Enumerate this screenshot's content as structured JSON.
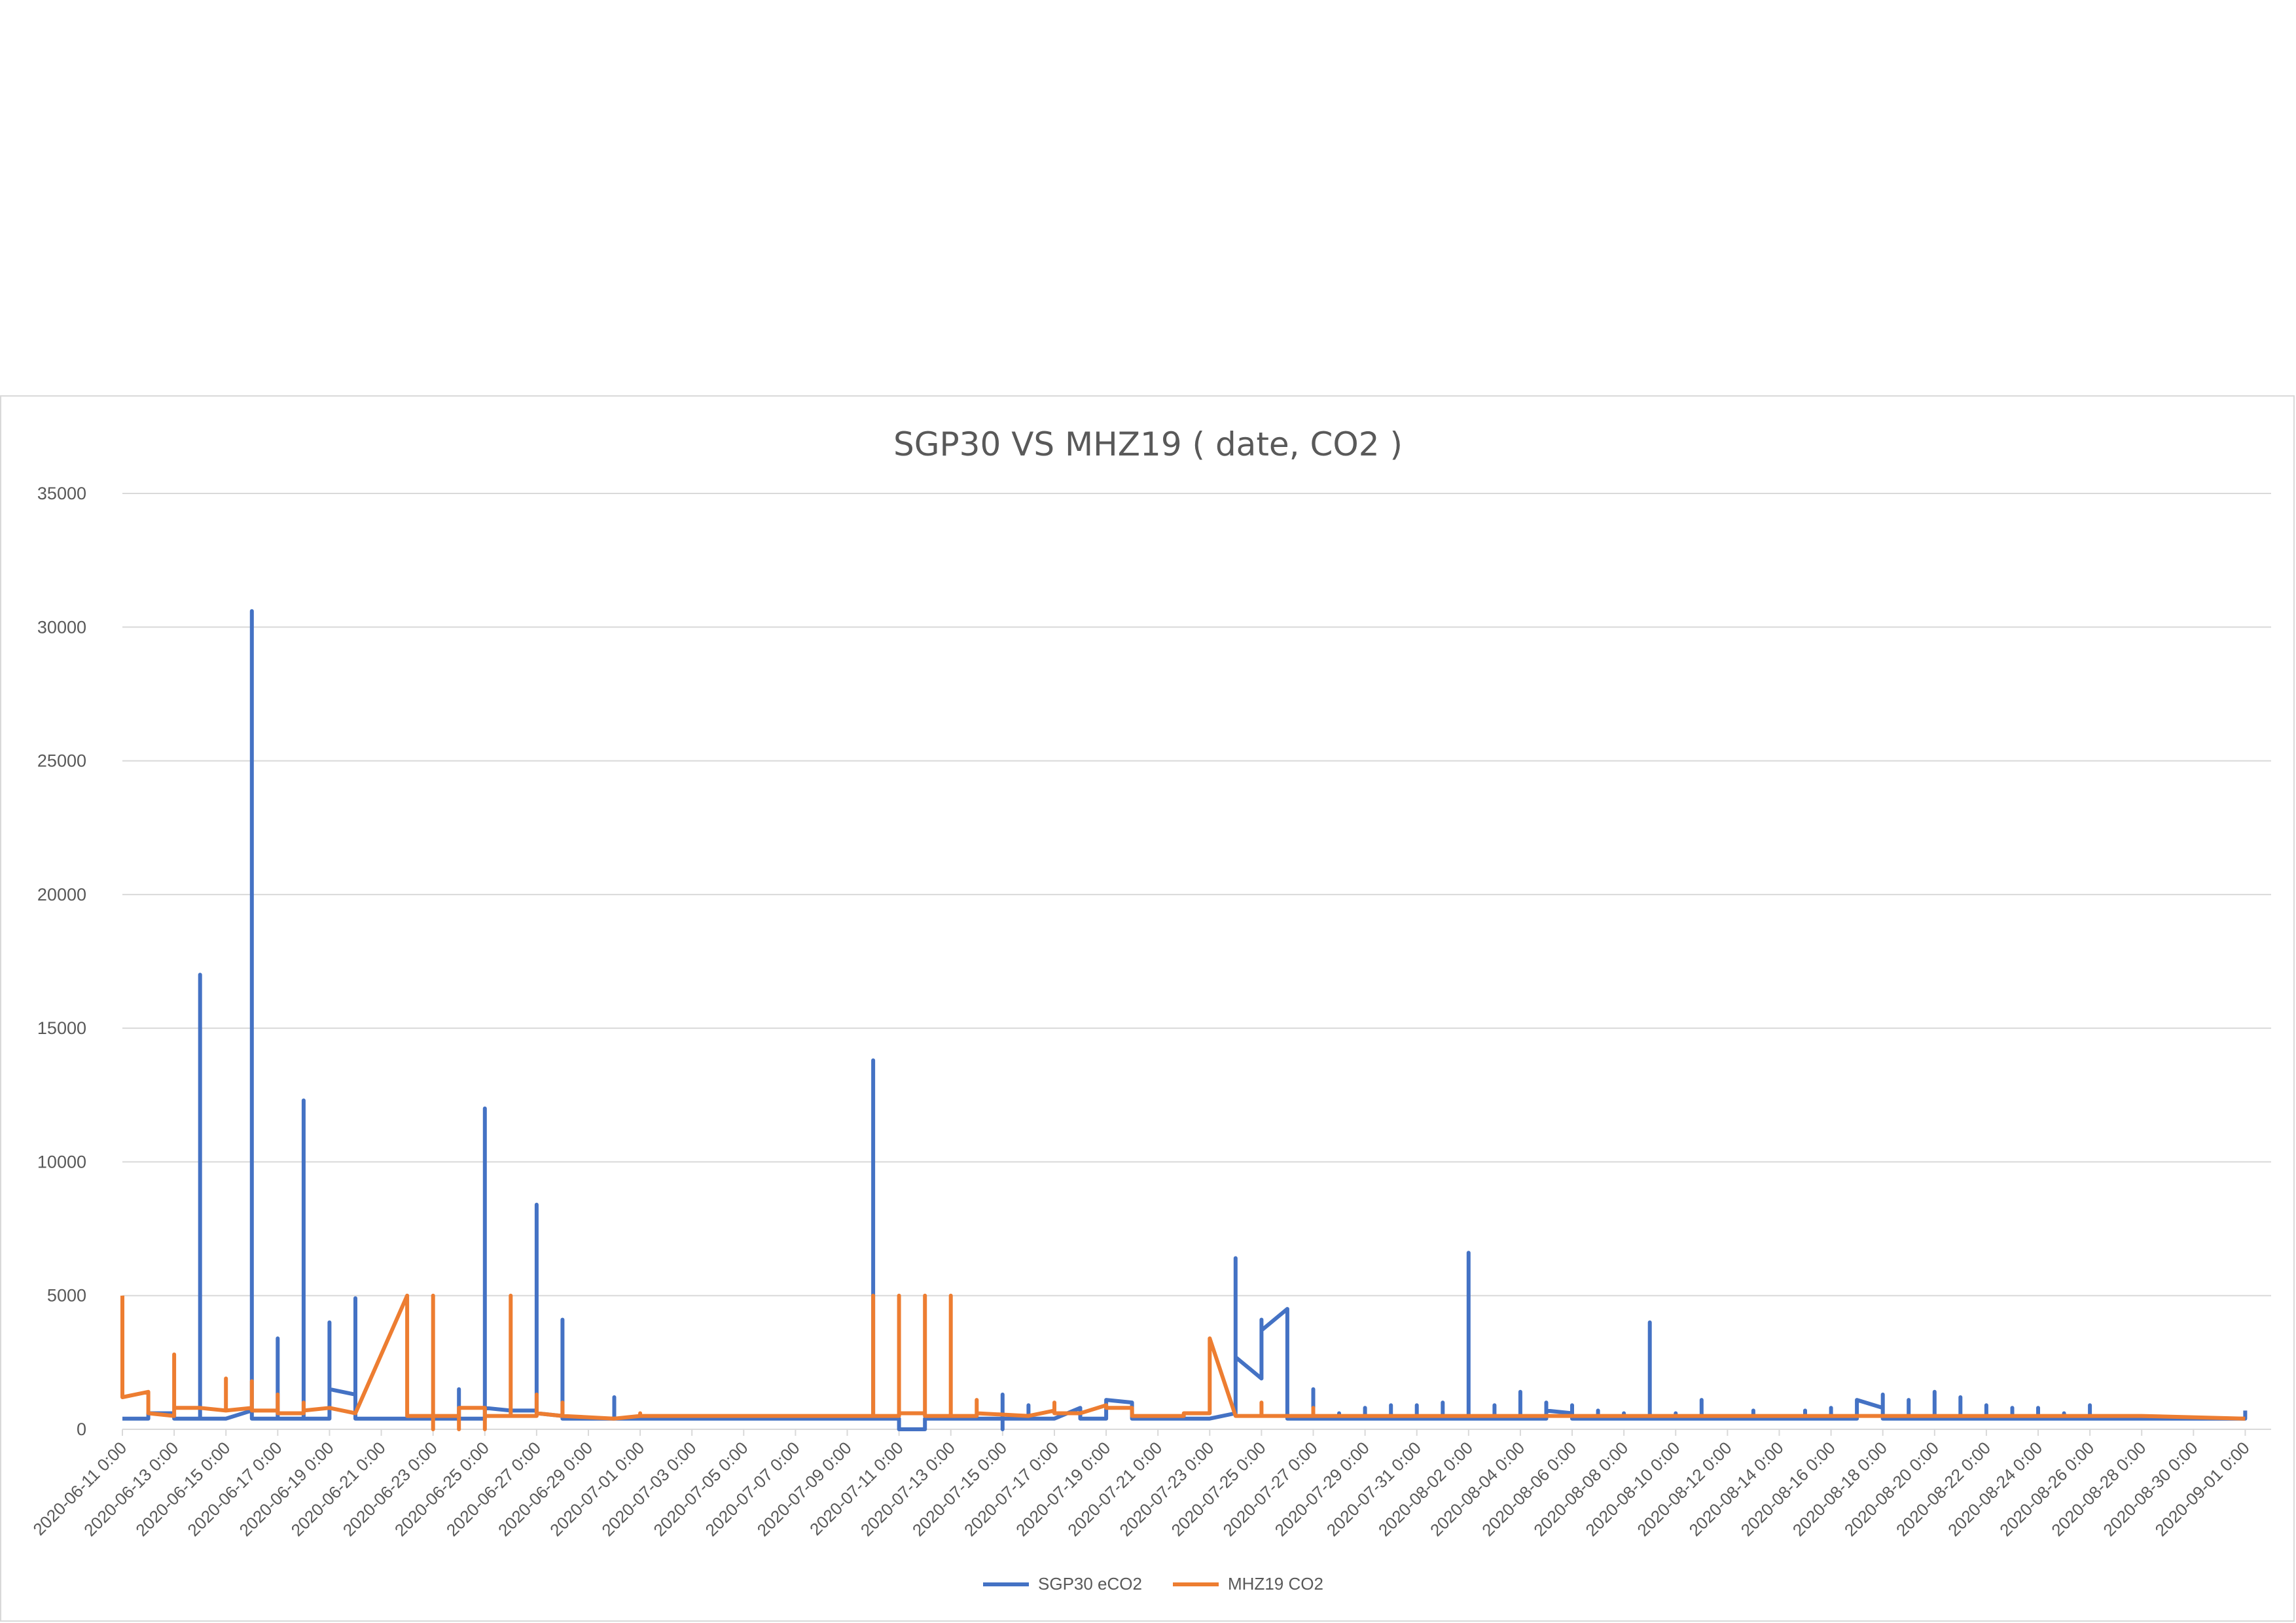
{
  "chart_data": {
    "type": "line",
    "title": "SGP30 VS MHZ19 ( date, CO2 )",
    "xlabel": "",
    "ylabel": "",
    "ylim": [
      0,
      35000
    ],
    "yticks": [
      0,
      5000,
      10000,
      15000,
      20000,
      25000,
      30000,
      35000
    ],
    "xlim": [
      "2020-06-11",
      "2020-09-02"
    ],
    "x_tick_labels": [
      "2020-06-11 0:00",
      "2020-06-13 0:00",
      "2020-06-15 0:00",
      "2020-06-17 0:00",
      "2020-06-19 0:00",
      "2020-06-21 0:00",
      "2020-06-23 0:00",
      "2020-06-25 0:00",
      "2020-06-27 0:00",
      "2020-06-29 0:00",
      "2020-07-01 0:00",
      "2020-07-03 0:00",
      "2020-07-05 0:00",
      "2020-07-07 0:00",
      "2020-07-09 0:00",
      "2020-07-11 0:00",
      "2020-07-13 0:00",
      "2020-07-15 0:00",
      "2020-07-17 0:00",
      "2020-07-19 0:00",
      "2020-07-21 0:00",
      "2020-07-23 0:00",
      "2020-07-25 0:00",
      "2020-07-27 0:00",
      "2020-07-29 0:00",
      "2020-07-31 0:00",
      "2020-08-02 0:00",
      "2020-08-04 0:00",
      "2020-08-06 0:00",
      "2020-08-08 0:00",
      "2020-08-10 0:00",
      "2020-08-12 0:00",
      "2020-08-14 0:00",
      "2020-08-16 0:00",
      "2020-08-18 0:00",
      "2020-08-20 0:00",
      "2020-08-22 0:00",
      "2020-08-24 0:00",
      "2020-08-26 0:00",
      "2020-08-28 0:00",
      "2020-08-30 0:00",
      "2020-09-01 0:00"
    ],
    "grid": true,
    "legend_position": "bottom",
    "series": [
      {
        "name": "SGP30 eCO2",
        "color": "#4472c4",
        "points": [
          [
            "2020-06-11 0:00",
            400
          ],
          [
            "2020-06-12 0:00",
            400
          ],
          [
            "2020-06-12 0:00",
            600
          ],
          [
            "2020-06-13 0:00",
            600
          ],
          [
            "2020-06-13 0:00",
            400
          ],
          [
            "2020-06-14 0:00",
            400
          ],
          [
            "2020-06-14 0:00",
            17000
          ],
          [
            "2020-06-14 0:00",
            400
          ],
          [
            "2020-06-15 0:00",
            400
          ],
          [
            "2020-06-16 0:00",
            700
          ],
          [
            "2020-06-16 0:00",
            30600
          ],
          [
            "2020-06-16 0:00",
            400
          ],
          [
            "2020-06-17 0:00",
            400
          ],
          [
            "2020-06-17 0:00",
            3400
          ],
          [
            "2020-06-17 0:00",
            400
          ],
          [
            "2020-06-18 0:00",
            400
          ],
          [
            "2020-06-18 0:00",
            12300
          ],
          [
            "2020-06-18 0:00",
            400
          ],
          [
            "2020-06-19 0:00",
            400
          ],
          [
            "2020-06-19 0:00",
            4000
          ],
          [
            "2020-06-19 0:00",
            1500
          ],
          [
            "2020-06-20 0:00",
            1300
          ],
          [
            "2020-06-20 0:00",
            4900
          ],
          [
            "2020-06-20 0:00",
            400
          ],
          [
            "2020-06-24 0:00",
            400
          ],
          [
            "2020-06-24 0:00",
            1500
          ],
          [
            "2020-06-24 0:00",
            400
          ],
          [
            "2020-06-25 0:00",
            400
          ],
          [
            "2020-06-25 0:00",
            12000
          ],
          [
            "2020-06-25 0:00",
            800
          ],
          [
            "2020-06-26 0:00",
            700
          ],
          [
            "2020-06-27 0:00",
            700
          ],
          [
            "2020-06-27 0:00",
            8400
          ],
          [
            "2020-06-27 0:00",
            600
          ],
          [
            "2020-06-28 0:00",
            500
          ],
          [
            "2020-06-28 0:00",
            4100
          ],
          [
            "2020-06-28 0:00",
            400
          ],
          [
            "2020-06-30 0:00",
            400
          ],
          [
            "2020-06-30 0:00",
            1200
          ],
          [
            "2020-06-30 0:00",
            400
          ],
          [
            "2020-07-01 0:00",
            400
          ],
          [
            "2020-07-10 0:00",
            400
          ],
          [
            "2020-07-10 0:00",
            13800
          ],
          [
            "2020-07-10 0:00",
            400
          ],
          [
            "2020-07-11 0:00",
            400
          ],
          [
            "2020-07-11 0:00",
            0
          ],
          [
            "2020-07-12 0:00",
            0
          ],
          [
            "2020-07-12 0:00",
            400
          ],
          [
            "2020-07-14 0:00",
            400
          ],
          [
            "2020-07-15 0:00",
            400
          ],
          [
            "2020-07-15 0:00",
            1300
          ],
          [
            "2020-07-15 0:00",
            0
          ],
          [
            "2020-07-15 0:00",
            400
          ],
          [
            "2020-07-16 0:00",
            400
          ],
          [
            "2020-07-16 0:00",
            900
          ],
          [
            "2020-07-16 0:00",
            400
          ],
          [
            "2020-07-17 0:00",
            400
          ],
          [
            "2020-07-18 0:00",
            800
          ],
          [
            "2020-07-18 0:00",
            400
          ],
          [
            "2020-07-19 0:00",
            400
          ],
          [
            "2020-07-19 0:00",
            1100
          ],
          [
            "2020-07-20 0:00",
            1000
          ],
          [
            "2020-07-20 0:00",
            400
          ],
          [
            "2020-07-23 0:00",
            400
          ],
          [
            "2020-07-24 0:00",
            600
          ],
          [
            "2020-07-24 0:00",
            6400
          ],
          [
            "2020-07-24 0:00",
            2700
          ],
          [
            "2020-07-25 0:00",
            1900
          ],
          [
            "2020-07-25 0:00",
            4100
          ],
          [
            "2020-07-25 0:00",
            3700
          ],
          [
            "2020-07-26 0:00",
            4500
          ],
          [
            "2020-07-26 0:00",
            400
          ],
          [
            "2020-07-27 0:00",
            400
          ],
          [
            "2020-07-27 0:00",
            1500
          ],
          [
            "2020-07-27 0:00",
            400
          ],
          [
            "2020-07-28 0:00",
            400
          ],
          [
            "2020-07-28 0:00",
            600
          ],
          [
            "2020-07-28 0:00",
            400
          ],
          [
            "2020-07-29 0:00",
            400
          ],
          [
            "2020-07-29 0:00",
            800
          ],
          [
            "2020-07-29 0:00",
            400
          ],
          [
            "2020-07-30 0:00",
            400
          ],
          [
            "2020-07-30 0:00",
            900
          ],
          [
            "2020-07-30 0:00",
            400
          ],
          [
            "2020-07-31 0:00",
            400
          ],
          [
            "2020-07-31 0:00",
            900
          ],
          [
            "2020-07-31 0:00",
            400
          ],
          [
            "2020-08-01 0:00",
            400
          ],
          [
            "2020-08-01 0:00",
            1000
          ],
          [
            "2020-08-01 0:00",
            400
          ],
          [
            "2020-08-02 0:00",
            400
          ],
          [
            "2020-08-02 0:00",
            6600
          ],
          [
            "2020-08-02 0:00",
            400
          ],
          [
            "2020-08-03 0:00",
            400
          ],
          [
            "2020-08-03 0:00",
            900
          ],
          [
            "2020-08-03 0:00",
            400
          ],
          [
            "2020-08-04 0:00",
            400
          ],
          [
            "2020-08-04 0:00",
            1400
          ],
          [
            "2020-08-04 0:00",
            400
          ],
          [
            "2020-08-05 0:00",
            400
          ],
          [
            "2020-08-05 0:00",
            1000
          ],
          [
            "2020-08-05 0:00",
            700
          ],
          [
            "2020-08-06 0:00",
            600
          ],
          [
            "2020-08-06 0:00",
            900
          ],
          [
            "2020-08-06 0:00",
            400
          ],
          [
            "2020-08-07 0:00",
            400
          ],
          [
            "2020-08-07 0:00",
            700
          ],
          [
            "2020-08-07 0:00",
            400
          ],
          [
            "2020-08-08 0:00",
            400
          ],
          [
            "2020-08-08 0:00",
            600
          ],
          [
            "2020-08-08 0:00",
            400
          ],
          [
            "2020-08-09 0:00",
            400
          ],
          [
            "2020-08-09 0:00",
            4000
          ],
          [
            "2020-08-09 0:00",
            400
          ],
          [
            "2020-08-10 0:00",
            400
          ],
          [
            "2020-08-10 0:00",
            600
          ],
          [
            "2020-08-10 0:00",
            400
          ],
          [
            "2020-08-11 0:00",
            400
          ],
          [
            "2020-08-11 0:00",
            1100
          ],
          [
            "2020-08-11 0:00",
            400
          ],
          [
            "2020-08-13 0:00",
            400
          ],
          [
            "2020-08-13 0:00",
            700
          ],
          [
            "2020-08-13 0:00",
            400
          ],
          [
            "2020-08-15 0:00",
            400
          ],
          [
            "2020-08-15 0:00",
            700
          ],
          [
            "2020-08-15 0:00",
            400
          ],
          [
            "2020-08-16 0:00",
            400
          ],
          [
            "2020-08-16 0:00",
            800
          ],
          [
            "2020-08-16 0:00",
            400
          ],
          [
            "2020-08-17 0:00",
            400
          ],
          [
            "2020-08-17 0:00",
            1100
          ],
          [
            "2020-08-18 0:00",
            800
          ],
          [
            "2020-08-18 0:00",
            1300
          ],
          [
            "2020-08-18 0:00",
            400
          ],
          [
            "2020-08-19 0:00",
            400
          ],
          [
            "2020-08-19 0:00",
            1100
          ],
          [
            "2020-08-19 0:00",
            400
          ],
          [
            "2020-08-20 0:00",
            400
          ],
          [
            "2020-08-20 0:00",
            1400
          ],
          [
            "2020-08-20 0:00",
            400
          ],
          [
            "2020-08-21 0:00",
            400
          ],
          [
            "2020-08-21 0:00",
            1200
          ],
          [
            "2020-08-21 0:00",
            400
          ],
          [
            "2020-08-22 0:00",
            400
          ],
          [
            "2020-08-22 0:00",
            900
          ],
          [
            "2020-08-22 0:00",
            400
          ],
          [
            "2020-08-23 0:00",
            400
          ],
          [
            "2020-08-23 0:00",
            800
          ],
          [
            "2020-08-23 0:00",
            400
          ],
          [
            "2020-08-24 0:00",
            400
          ],
          [
            "2020-08-24 0:00",
            800
          ],
          [
            "2020-08-24 0:00",
            400
          ],
          [
            "2020-08-25 0:00",
            400
          ],
          [
            "2020-08-25 0:00",
            600
          ],
          [
            "2020-08-25 0:00",
            400
          ],
          [
            "2020-08-26 0:00",
            400
          ],
          [
            "2020-08-26 0:00",
            900
          ],
          [
            "2020-08-26 0:00",
            400
          ],
          [
            "2020-09-01 0:00",
            400
          ],
          [
            "2020-09-01 0:00",
            700
          ]
        ]
      },
      {
        "name": "MHZ19 CO2",
        "color": "#ed7d31",
        "points": [
          [
            "2020-06-11 0:00",
            5000
          ],
          [
            "2020-06-11 0:00",
            1200
          ],
          [
            "2020-06-12 0:00",
            1400
          ],
          [
            "2020-06-12 0:00",
            600
          ],
          [
            "2020-06-13 0:00",
            500
          ],
          [
            "2020-06-13 0:00",
            2800
          ],
          [
            "2020-06-13 0:00",
            800
          ],
          [
            "2020-06-14 0:00",
            800
          ],
          [
            "2020-06-15 0:00",
            700
          ],
          [
            "2020-06-15 0:00",
            1900
          ],
          [
            "2020-06-15 0:00",
            700
          ],
          [
            "2020-06-16 0:00",
            800
          ],
          [
            "2020-06-16 0:00",
            1800
          ],
          [
            "2020-06-16 0:00",
            700
          ],
          [
            "2020-06-17 0:00",
            700
          ],
          [
            "2020-06-17 0:00",
            1300
          ],
          [
            "2020-06-17 0:00",
            600
          ],
          [
            "2020-06-18 0:00",
            600
          ],
          [
            "2020-06-18 0:00",
            1000
          ],
          [
            "2020-06-18 0:00",
            700
          ],
          [
            "2020-06-19 0:00",
            800
          ],
          [
            "2020-06-20 0:00",
            600
          ],
          [
            "2020-06-22 0:00",
            5000
          ],
          [
            "2020-06-22 0:00",
            500
          ],
          [
            "2020-06-23 0:00",
            500
          ],
          [
            "2020-06-23 0:00",
            5000
          ],
          [
            "2020-06-23 0:00",
            0
          ],
          [
            "2020-06-23 0:00",
            500
          ],
          [
            "2020-06-24 0:00",
            500
          ],
          [
            "2020-06-24 0:00",
            0
          ],
          [
            "2020-06-24 0:00",
            800
          ],
          [
            "2020-06-25 0:00",
            800
          ],
          [
            "2020-06-25 0:00",
            0
          ],
          [
            "2020-06-25 0:00",
            500
          ],
          [
            "2020-06-26 0:00",
            500
          ],
          [
            "2020-06-26 0:00",
            5000
          ],
          [
            "2020-06-26 0:00",
            500
          ],
          [
            "2020-06-27 0:00",
            500
          ],
          [
            "2020-06-27 0:00",
            1300
          ],
          [
            "2020-06-27 0:00",
            600
          ],
          [
            "2020-06-28 0:00",
            500
          ],
          [
            "2020-06-28 0:00",
            1000
          ],
          [
            "2020-06-28 0:00",
            500
          ],
          [
            "2020-06-30 0:00",
            400
          ],
          [
            "2020-07-01 0:00",
            500
          ],
          [
            "2020-07-01 0:00",
            600
          ],
          [
            "2020-07-01 0:00",
            500
          ],
          [
            "2020-07-10 0:00",
            500
          ],
          [
            "2020-07-10 0:00",
            5000
          ],
          [
            "2020-07-10 0:00",
            500
          ],
          [
            "2020-07-11 0:00",
            500
          ],
          [
            "2020-07-11 0:00",
            5000
          ],
          [
            "2020-07-11 0:00",
            600
          ],
          [
            "2020-07-12 0:00",
            600
          ],
          [
            "2020-07-12 0:00",
            5000
          ],
          [
            "2020-07-12 0:00",
            500
          ],
          [
            "2020-07-13 0:00",
            500
          ],
          [
            "2020-07-13 0:00",
            5000
          ],
          [
            "2020-07-13 0:00",
            500
          ],
          [
            "2020-07-14 0:00",
            500
          ],
          [
            "2020-07-14 0:00",
            1100
          ],
          [
            "2020-07-14 0:00",
            600
          ],
          [
            "2020-07-16 0:00",
            500
          ],
          [
            "2020-07-17 0:00",
            700
          ],
          [
            "2020-07-17 0:00",
            1000
          ],
          [
            "2020-07-17 0:00",
            600
          ],
          [
            "2020-07-18 0:00",
            600
          ],
          [
            "2020-07-19 0:00",
            900
          ],
          [
            "2020-07-19 0:00",
            800
          ],
          [
            "2020-07-20 0:00",
            800
          ],
          [
            "2020-07-20 0:00",
            500
          ],
          [
            "2020-07-22 0:00",
            500
          ],
          [
            "2020-07-22 0:00",
            600
          ],
          [
            "2020-07-23 0:00",
            600
          ],
          [
            "2020-07-23 0:00",
            3400
          ],
          [
            "2020-07-24 0:00",
            500
          ],
          [
            "2020-07-25 0:00",
            500
          ],
          [
            "2020-07-25 0:00",
            1000
          ],
          [
            "2020-07-25 0:00",
            500
          ],
          [
            "2020-07-26 0:00",
            500
          ],
          [
            "2020-07-27 0:00",
            500
          ],
          [
            "2020-07-27 0:00",
            800
          ],
          [
            "2020-07-27 0:00",
            500
          ],
          [
            "2020-07-28 0:00",
            500
          ],
          [
            "2020-08-28 0:00",
            500
          ],
          [
            "2020-09-01 0:00",
            400
          ]
        ]
      }
    ]
  }
}
